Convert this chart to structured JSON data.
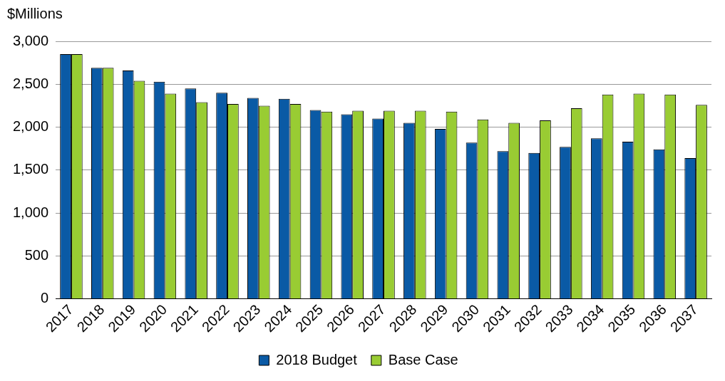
{
  "chart_data": {
    "type": "bar",
    "ylabel": "$Millions",
    "categories": [
      "2017",
      "2018",
      "2019",
      "2020",
      "2021",
      "2022",
      "2023",
      "2024",
      "2025",
      "2026",
      "2027",
      "2028",
      "2029",
      "2030",
      "2031",
      "2032",
      "2033",
      "2034",
      "2035",
      "2036",
      "2037"
    ],
    "series": [
      {
        "name": "2018 Budget",
        "color": "#0a5aa5",
        "values": [
          2850,
          2690,
          2660,
          2530,
          2450,
          2400,
          2340,
          2330,
          2200,
          2150,
          2100,
          2050,
          1980,
          1820,
          1720,
          1700,
          1770,
          1870,
          1830,
          1740,
          1640
        ]
      },
      {
        "name": "Base Case",
        "color": "#99cc33",
        "values": [
          2850,
          2690,
          2540,
          2390,
          2290,
          2270,
          2250,
          2270,
          2180,
          2190,
          2190,
          2190,
          2180,
          2090,
          2050,
          2080,
          2220,
          2380,
          2390,
          2380,
          2260
        ]
      }
    ],
    "ylim": [
      0,
      3000
    ],
    "yticks": [
      {
        "value": 0,
        "label": "0"
      },
      {
        "value": 500,
        "label": "500"
      },
      {
        "value": 1000,
        "label": "1,000"
      },
      {
        "value": 1500,
        "label": "1,500"
      },
      {
        "value": 2000,
        "label": "2,000"
      },
      {
        "value": 2500,
        "label": "2,500"
      },
      {
        "value": 3000,
        "label": "3,000"
      }
    ],
    "grid": "y",
    "legend": "bottom"
  }
}
